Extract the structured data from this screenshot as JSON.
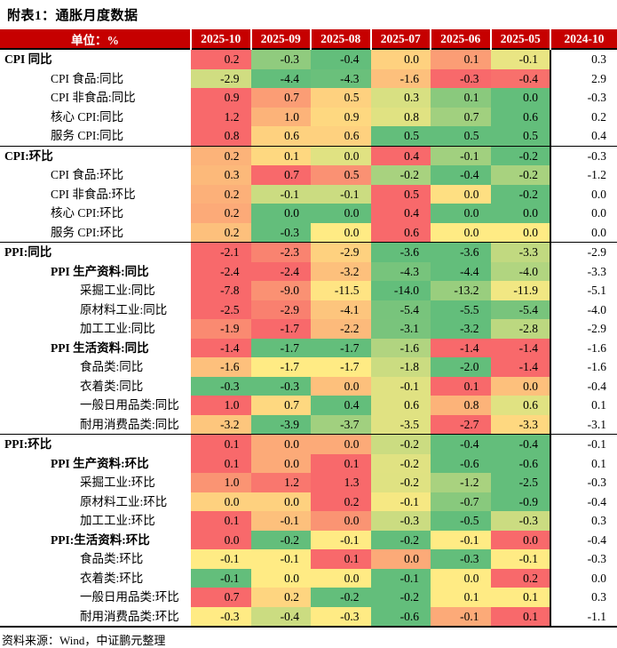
{
  "title": "附表1：通胀月度数据",
  "source": "资料来源：Wind，中证鹏元整理",
  "table": {
    "unit_label": "单位：%",
    "columns": [
      "2025-10",
      "2025-09",
      "2025-08",
      "2025-07",
      "2025-06",
      "2025-05",
      "2024-10"
    ],
    "colors": {
      "header_bg": "#C60000",
      "header_text": "#FFFFFF",
      "heatmap_low_green": "#63BE7B",
      "heatmap_mid_yellow": "#FFEB84",
      "heatmap_high_red": "#F8696B"
    },
    "rows": [
      {
        "label": "CPI 同比",
        "level": 0,
        "bold": true,
        "section_start": false,
        "values": [
          0.2,
          -0.3,
          -0.4,
          0.0,
          0.1,
          -0.1,
          0.3
        ]
      },
      {
        "label": "CPI 食品:同比",
        "level": 1,
        "bold": false,
        "section_start": false,
        "values": [
          -2.9,
          -4.4,
          -4.3,
          -1.6,
          -0.3,
          -0.4,
          2.9
        ]
      },
      {
        "label": "CPI 非食品:同比",
        "level": 1,
        "bold": false,
        "section_start": false,
        "values": [
          0.9,
          0.7,
          0.5,
          0.3,
          0.1,
          0.0,
          -0.3
        ]
      },
      {
        "label": "核心 CPI:同比",
        "level": 1,
        "bold": false,
        "section_start": false,
        "values": [
          1.2,
          1.0,
          0.9,
          0.8,
          0.7,
          0.6,
          0.2
        ]
      },
      {
        "label": "服务 CPI:同比",
        "level": 1,
        "bold": false,
        "section_start": false,
        "values": [
          0.8,
          0.6,
          0.6,
          0.5,
          0.5,
          0.5,
          0.4
        ]
      },
      {
        "label": "CPI:环比",
        "level": 0,
        "bold": true,
        "section_start": true,
        "values": [
          0.2,
          0.1,
          0.0,
          0.4,
          -0.1,
          -0.2,
          -0.3
        ]
      },
      {
        "label": "CPI 食品:环比",
        "level": 1,
        "bold": false,
        "section_start": false,
        "values": [
          0.3,
          0.7,
          0.5,
          -0.2,
          -0.4,
          -0.2,
          -1.2
        ]
      },
      {
        "label": "CPI 非食品:环比",
        "level": 1,
        "bold": false,
        "section_start": false,
        "values": [
          0.2,
          -0.1,
          -0.1,
          0.5,
          0.0,
          -0.2,
          0.0
        ]
      },
      {
        "label": "核心 CPI:环比",
        "level": 1,
        "bold": false,
        "section_start": false,
        "values": [
          0.2,
          0.0,
          0.0,
          0.4,
          0.0,
          0.0,
          0.0
        ]
      },
      {
        "label": "服务 CPI:环比",
        "level": 1,
        "bold": false,
        "section_start": false,
        "values": [
          0.2,
          -0.3,
          0.0,
          0.6,
          0.0,
          0.0,
          0.0
        ]
      },
      {
        "label": "PPI:同比",
        "level": 0,
        "bold": true,
        "section_start": true,
        "values": [
          -2.1,
          -2.3,
          -2.9,
          -3.6,
          -3.6,
          -3.3,
          -2.9
        ]
      },
      {
        "label": "PPI 生产资料:同比",
        "level": 1,
        "bold": true,
        "section_start": false,
        "values": [
          -2.4,
          -2.4,
          -3.2,
          -4.3,
          -4.4,
          -4.0,
          -3.3
        ]
      },
      {
        "label": "采掘工业:同比",
        "level": 2,
        "bold": false,
        "section_start": false,
        "values": [
          -7.8,
          -9.0,
          -11.5,
          -14.0,
          -13.2,
          -11.9,
          -5.1
        ]
      },
      {
        "label": "原材料工业:同比",
        "level": 2,
        "bold": false,
        "section_start": false,
        "values": [
          -2.5,
          -2.9,
          -4.1,
          -5.4,
          -5.5,
          -5.4,
          -4.0
        ]
      },
      {
        "label": "加工工业:同比",
        "level": 2,
        "bold": false,
        "section_start": false,
        "values": [
          -1.9,
          -1.7,
          -2.2,
          -3.1,
          -3.2,
          -2.8,
          -2.9
        ]
      },
      {
        "label": "PPI 生活资料:同比",
        "level": 1,
        "bold": true,
        "section_start": false,
        "values": [
          -1.4,
          -1.7,
          -1.7,
          -1.6,
          -1.4,
          -1.4,
          -1.6
        ]
      },
      {
        "label": "食品类:同比",
        "level": 2,
        "bold": false,
        "section_start": false,
        "values": [
          -1.6,
          -1.7,
          -1.7,
          -1.8,
          -2.0,
          -1.4,
          -1.6
        ]
      },
      {
        "label": "衣着类:同比",
        "level": 2,
        "bold": false,
        "section_start": false,
        "values": [
          -0.3,
          -0.3,
          0.0,
          -0.1,
          0.1,
          0.0,
          -0.4
        ]
      },
      {
        "label": "一般日用品类:同比",
        "level": 2,
        "bold": false,
        "section_start": false,
        "values": [
          1.0,
          0.7,
          0.4,
          0.6,
          0.8,
          0.6,
          0.1
        ]
      },
      {
        "label": "耐用消费品类:同比",
        "level": 2,
        "bold": false,
        "section_start": false,
        "values": [
          -3.2,
          -3.9,
          -3.7,
          -3.5,
          -2.7,
          -3.3,
          -3.1
        ]
      },
      {
        "label": "PPI:环比",
        "level": 0,
        "bold": true,
        "section_start": true,
        "values": [
          0.1,
          0.0,
          0.0,
          -0.2,
          -0.4,
          -0.4,
          -0.1
        ]
      },
      {
        "label": "PPI 生产资料:环比",
        "level": 1,
        "bold": true,
        "section_start": false,
        "values": [
          0.1,
          0.0,
          0.1,
          -0.2,
          -0.6,
          -0.6,
          0.1
        ]
      },
      {
        "label": "采掘工业:环比",
        "level": 2,
        "bold": false,
        "section_start": false,
        "values": [
          1.0,
          1.2,
          1.3,
          -0.2,
          -1.2,
          -2.5,
          -0.3
        ]
      },
      {
        "label": "原材料工业:环比",
        "level": 2,
        "bold": false,
        "section_start": false,
        "values": [
          0.0,
          0.0,
          0.2,
          -0.1,
          -0.7,
          -0.9,
          -0.4
        ]
      },
      {
        "label": "加工工业:环比",
        "level": 2,
        "bold": false,
        "section_start": false,
        "values": [
          0.1,
          -0.1,
          0.0,
          -0.3,
          -0.5,
          -0.3,
          0.3
        ]
      },
      {
        "label": "PPI:生活资料:环比",
        "level": 1,
        "bold": true,
        "section_start": false,
        "values": [
          0.0,
          -0.2,
          -0.1,
          -0.2,
          -0.1,
          0.0,
          -0.4
        ]
      },
      {
        "label": "食品类:环比",
        "level": 2,
        "bold": false,
        "section_start": false,
        "values": [
          -0.1,
          -0.1,
          0.1,
          0.0,
          -0.3,
          -0.1,
          -0.3
        ]
      },
      {
        "label": "衣着类:环比",
        "level": 2,
        "bold": false,
        "section_start": false,
        "values": [
          -0.1,
          0.0,
          0.0,
          -0.1,
          0.0,
          0.2,
          0.0
        ]
      },
      {
        "label": "一般日用品类:环比",
        "level": 2,
        "bold": false,
        "section_start": false,
        "values": [
          0.7,
          0.2,
          -0.2,
          -0.2,
          0.1,
          0.1,
          0.3
        ]
      },
      {
        "label": "耐用消费品类:环比",
        "level": 2,
        "bold": false,
        "section_start": false,
        "values": [
          -0.3,
          -0.4,
          -0.3,
          -0.6,
          -0.1,
          0.1,
          -1.1
        ]
      }
    ]
  }
}
